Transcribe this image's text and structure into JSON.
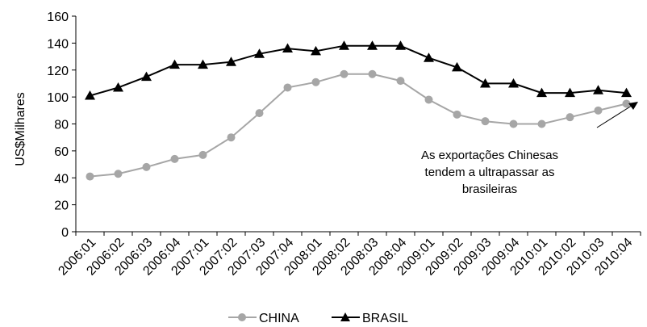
{
  "chart_data": {
    "type": "line",
    "title": "",
    "xlabel": "",
    "ylabel": "US$Milhares",
    "ylim": [
      0,
      160
    ],
    "yticks": [
      0,
      20,
      40,
      60,
      80,
      100,
      120,
      140,
      160
    ],
    "grid": false,
    "legend_position": "bottom",
    "categories": [
      "2006:01",
      "2006:02",
      "2006:03",
      "2006:04",
      "2007:01",
      "2007:02",
      "2007:03",
      "2007:04",
      "2008:01",
      "2008:02",
      "2008:03",
      "2008:04",
      "2009:01",
      "2009:02",
      "2009:03",
      "2009:04",
      "2010:01",
      "2010:02",
      "2010:03",
      "2010:04"
    ],
    "series": [
      {
        "name": "CHINA",
        "color": "#a6a6a6",
        "marker": "circle",
        "values": [
          41,
          43,
          48,
          54,
          57,
          70,
          88,
          107,
          111,
          117,
          117,
          112,
          98,
          87,
          82,
          80,
          80,
          85,
          90,
          95
        ]
      },
      {
        "name": "BRASIL",
        "color": "#000000",
        "marker": "triangle",
        "values": [
          101,
          107,
          115,
          124,
          124,
          126,
          132,
          136,
          134,
          138,
          138,
          138,
          129,
          122,
          110,
          110,
          103,
          103,
          105,
          103
        ]
      }
    ],
    "annotation": {
      "lines": [
        "As exportações Chinesas",
        "tendem a ultrapassar as",
        "brasileiras"
      ]
    }
  }
}
